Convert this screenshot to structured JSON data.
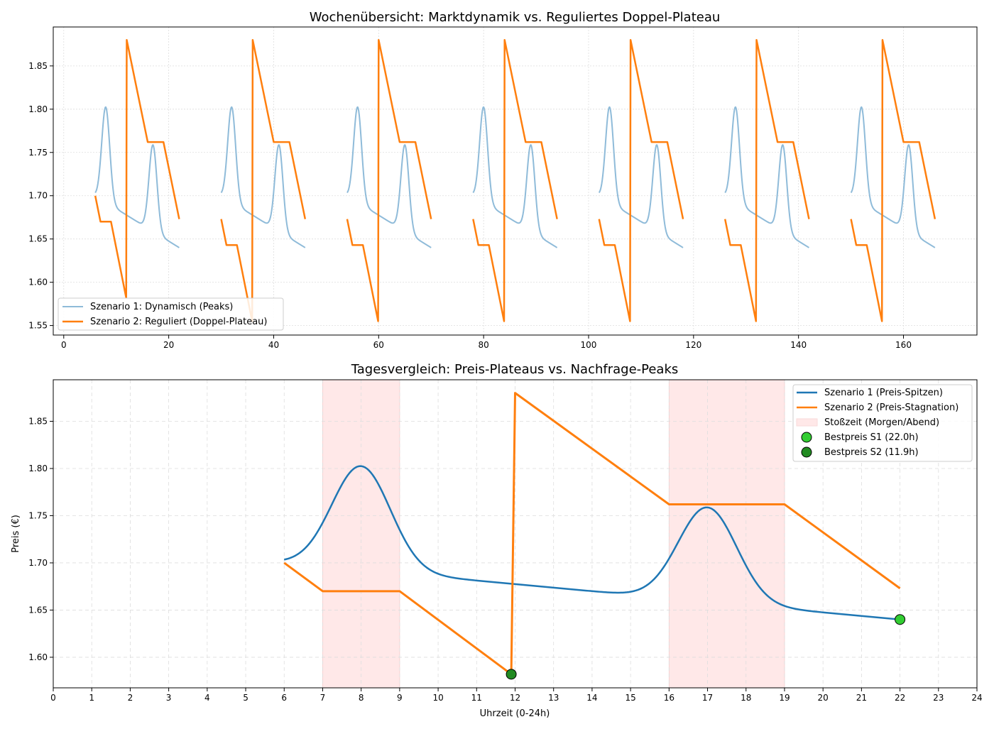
{
  "chart_data": [
    {
      "type": "line",
      "title": "Wochenübersicht: Marktdynamik vs. Reguliertes Doppel-Plateau",
      "xlabel": "",
      "ylabel": "",
      "xlim": [
        -2,
        174
      ],
      "ylim": [
        1.539,
        1.895
      ],
      "xticks": [
        0,
        20,
        40,
        60,
        80,
        100,
        120,
        140,
        160
      ],
      "yticks": [
        "1.55",
        "1.60",
        "1.65",
        "1.70",
        "1.75",
        "1.80",
        "1.85"
      ],
      "grid": true,
      "legend_placement": "lower-left",
      "days": 7,
      "series": [
        {
          "name": "Szenario 1: Dynamisch (Peaks)",
          "color": "#8fbbd9",
          "model": "s1_daily_repeat"
        },
        {
          "name": "Szenario 2: Reguliert (Doppel-Plateau)",
          "color": "#ff7f0e",
          "points_day0": [
            [
              6,
              1.7
            ],
            [
              7,
              1.67
            ],
            [
              9,
              1.67
            ],
            [
              11.9,
              1.582
            ],
            [
              12,
              1.88
            ],
            [
              16,
              1.762
            ],
            [
              19,
              1.762
            ],
            [
              22,
              1.673
            ]
          ],
          "points_later_days": [
            [
              6,
              1.673
            ],
            [
              7,
              1.643
            ],
            [
              9,
              1.643
            ],
            [
              11.9,
              1.555
            ],
            [
              12,
              1.88
            ],
            [
              16,
              1.762
            ],
            [
              19,
              1.762
            ],
            [
              22,
              1.673
            ]
          ]
        }
      ]
    },
    {
      "type": "line",
      "title": "Tagesvergleich: Preis-Plateaus vs. Nachfrage-Peaks",
      "xlabel": "Uhrzeit (0-24h)",
      "ylabel": "Preis (€)",
      "xlim": [
        0,
        24
      ],
      "ylim": [
        1.5676,
        1.894
      ],
      "xticks": [
        "0",
        "1",
        "2",
        "3",
        "4",
        "5",
        "6",
        "7",
        "8",
        "9",
        "10",
        "11",
        "12",
        "13",
        "14",
        "15",
        "16",
        "17",
        "18",
        "19",
        "20",
        "21",
        "22",
        "23",
        "24"
      ],
      "yticks": [
        "1.60",
        "1.65",
        "1.70",
        "1.75",
        "1.80",
        "1.85"
      ],
      "grid": true,
      "legend_placement": "upper-right",
      "series": [
        {
          "name": "Szenario 1 (Preis-Spitzen)",
          "color": "#1f77b4",
          "model": {
            "start": 6,
            "end": 22,
            "base_start": 1.7,
            "base_slope": -0.00375,
            "peaks": [
              {
                "center": 8,
                "amp": 0.11,
                "sigma": 0.76
              },
              {
                "center": 17,
                "amp": 0.1,
                "sigma": 0.76
              }
            ]
          }
        },
        {
          "name": "Szenario 2 (Preis-Stagnation)",
          "color": "#ff7f0e",
          "points": [
            [
              6,
              1.7
            ],
            [
              7,
              1.67
            ],
            [
              9,
              1.67
            ],
            [
              11.9,
              1.582
            ],
            [
              12,
              1.88
            ],
            [
              16,
              1.762
            ],
            [
              19,
              1.762
            ],
            [
              22,
              1.673
            ]
          ]
        }
      ],
      "spans": [
        {
          "name": "Stoßzeit (Morgen/Abend)",
          "ranges": [
            [
              7,
              9
            ],
            [
              16,
              19
            ]
          ],
          "color": "#ffe8e8"
        }
      ],
      "markers": [
        {
          "name": "Bestpreis S1 (22.0h)",
          "x": 22.0,
          "y": 1.64,
          "color": "#32cd32"
        },
        {
          "name": "Bestpreis S2 (11.9h)",
          "x": 11.9,
          "y": 1.582,
          "color": "#228b22"
        }
      ]
    }
  ]
}
